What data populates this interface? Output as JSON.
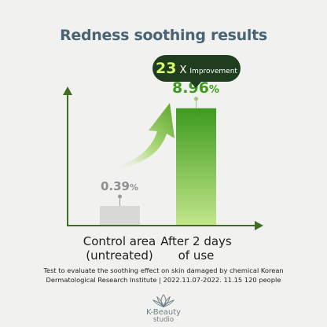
{
  "chart_data": {
    "type": "bar",
    "title": "Redness soothing results",
    "categories": [
      "Control area\n(untreated)",
      "After 2 days\nof use"
    ],
    "values": [
      0.39,
      8.96
    ],
    "value_labels": [
      "0.39",
      "8.96"
    ],
    "unit": "%",
    "ylim": [
      0,
      11
    ],
    "grid": false,
    "annotation": {
      "number": "23",
      "multiplier": "X",
      "text": "Improvement"
    },
    "colors": {
      "control_bar": "#d8d8d6",
      "treated_bar_top": "#3e9a1e",
      "treated_bar_bottom": "#c2e68a",
      "axis": "#3e6e26",
      "bubble": "#1f3e1f",
      "bubble_number": "#d9f76a"
    }
  },
  "footnote": "Test to evaluate the soothing effect on skin damaged by chemical Korean\nDermatological Research Institute | 2022.11.07-2022. 11.15 120 people",
  "brand": {
    "name": "K-Beauty",
    "subtitle": "studio",
    "icon": "lotus-icon"
  }
}
